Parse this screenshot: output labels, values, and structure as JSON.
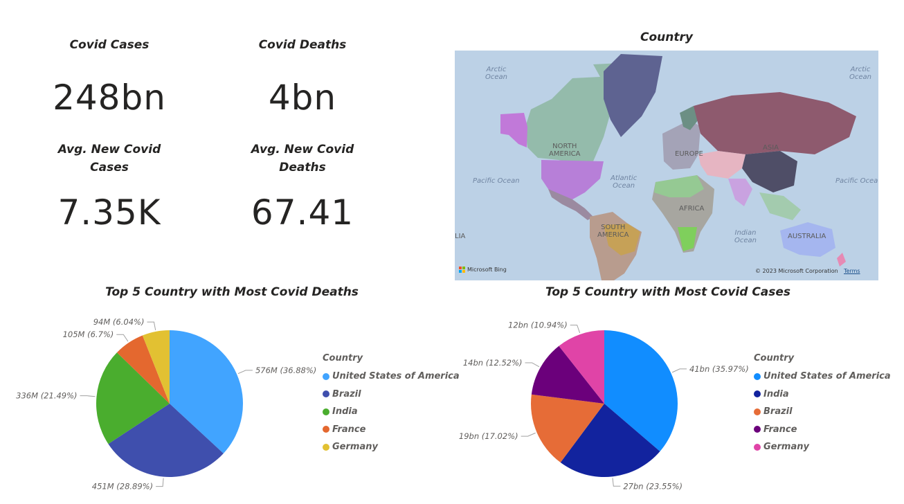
{
  "cards": {
    "covid_cases": {
      "title": "Covid Cases",
      "value": "248bn"
    },
    "covid_deaths": {
      "title": "Covid Deaths",
      "value": "4bn"
    },
    "avg_new_cases": {
      "title_line1": "Avg. New Covid",
      "title_line2": "Cases",
      "value": "7.35K"
    },
    "avg_new_deaths": {
      "title_line1": "Avg. New Covid",
      "title_line2": "Deaths",
      "value": "67.41"
    }
  },
  "map": {
    "title": "Country",
    "ocean_labels": {
      "arctic_left": [
        "Arctic",
        "Ocean"
      ],
      "arctic_right": [
        "Arctic",
        "Ocean"
      ],
      "pacific_left": "Pacific Ocean",
      "pacific_right": "Pacific Ocea",
      "atlantic": [
        "Atlantic",
        "Ocean"
      ],
      "indian": [
        "Indian",
        "Ocean"
      ]
    },
    "continent_labels": {
      "north_america": [
        "NORTH",
        "AMERICA"
      ],
      "south_america": [
        "SOUTH",
        "AMERICA"
      ],
      "europe": "EUROPE",
      "africa": "AFRICA",
      "asia": "ASIA",
      "australia": "AUSTRALIA",
      "edge": "LIA"
    },
    "brand": "Microsoft Bing",
    "copyright": "© 2023 Microsoft Corporation",
    "terms": "Terms"
  },
  "chart_data": [
    {
      "type": "pie",
      "title": "Top 5 Country with Most Covid Deaths",
      "legend_title": "Country",
      "legend_position": "right",
      "categories": [
        "United States of America",
        "Brazil",
        "India",
        "France",
        "Germany"
      ],
      "values": [
        576,
        451,
        336,
        105,
        94
      ],
      "unit": "M",
      "labels": [
        "576M (36.88%)",
        "451M (28.89%)",
        "336M (21.49%)",
        "105M (6.7%)",
        "94M (6.04%)"
      ],
      "colors": [
        "#41a4ff",
        "#3f4fad",
        "#4aad2e",
        "#e4682f",
        "#e2c132"
      ]
    },
    {
      "type": "pie",
      "title": "Top 5 Country with Most Covid Cases",
      "legend_title": "Country",
      "legend_position": "right",
      "categories": [
        "United States of America",
        "India",
        "Brazil",
        "France",
        "Germany"
      ],
      "values": [
        41,
        27,
        19,
        14,
        12
      ],
      "unit": "bn",
      "labels": [
        "41bn (35.97%)",
        "27bn (23.55%)",
        "19bn (17.02%)",
        "14bn (12.52%)",
        "12bn (10.94%)"
      ],
      "colors": [
        "#118dff",
        "#12239e",
        "#e66c37",
        "#6b007b",
        "#e044a7"
      ]
    }
  ]
}
